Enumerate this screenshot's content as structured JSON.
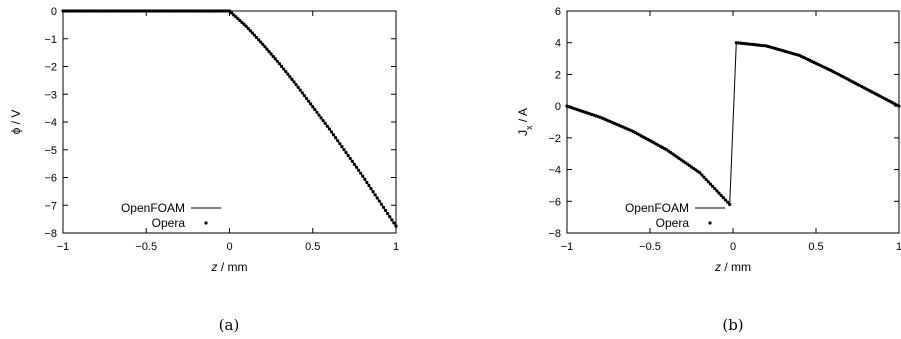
{
  "chart_data": [
    {
      "type": "line",
      "panel_label": "(a)",
      "xlabel_var": "z",
      "xlabel_unit": " / mm",
      "ylabel": "ϕ / V",
      "xlim": [
        -1,
        1
      ],
      "ylim": [
        -8,
        0
      ],
      "xticks": [
        -1,
        -0.5,
        0,
        0.5,
        1
      ],
      "xtick_labels": [
        "−1",
        "−0.5",
        "0",
        "0.5",
        "1"
      ],
      "yticks": [
        0,
        -1,
        -2,
        -3,
        -4,
        -5,
        -6,
        -7,
        -8
      ],
      "ytick_labels": [
        "0",
        "−1",
        "−2",
        "−3",
        "−4",
        "−5",
        "−6",
        "−7",
        "−8"
      ],
      "grid": false,
      "legend_placement": "bottom-left",
      "series": [
        {
          "name": "OpenFOAM",
          "style": "line",
          "x": [
            -1,
            -0.5,
            0,
            0.1,
            0.2,
            0.3,
            0.4,
            0.5,
            0.6,
            0.7,
            0.8,
            0.9,
            1.0
          ],
          "y": [
            0,
            0,
            0,
            -0.55,
            -1.2,
            -1.9,
            -2.65,
            -3.45,
            -4.25,
            -5.1,
            -5.95,
            -6.85,
            -7.75
          ]
        },
        {
          "name": "Opera",
          "style": "points",
          "x": [
            -1,
            -0.5,
            0,
            0.1,
            0.2,
            0.3,
            0.4,
            0.5,
            0.6,
            0.7,
            0.8,
            0.9,
            1.0
          ],
          "y": [
            0,
            0,
            0,
            -0.55,
            -1.2,
            -1.9,
            -2.65,
            -3.45,
            -4.25,
            -5.1,
            -5.95,
            -6.85,
            -7.75
          ]
        }
      ]
    },
    {
      "type": "line",
      "panel_label": "(b)",
      "xlabel_var": "z",
      "xlabel_unit": " / mm",
      "ylabel_main": "J",
      "ylabel_sub": "x",
      "ylabel_unit": " / A",
      "xlim": [
        -1,
        1
      ],
      "ylim": [
        -8,
        6
      ],
      "xticks": [
        -1,
        -0.5,
        0,
        0.5,
        1
      ],
      "xtick_labels": [
        "−1",
        "−0.5",
        "0",
        "0.5",
        "1"
      ],
      "yticks": [
        6,
        4,
        2,
        0,
        -2,
        -4,
        -6,
        -8
      ],
      "ytick_labels": [
        "6",
        "4",
        "2",
        "0",
        "−2",
        "−4",
        "−6",
        "−8"
      ],
      "grid": false,
      "legend_placement": "bottom-left",
      "series": [
        {
          "name": "OpenFOAM",
          "style": "line",
          "x": [
            -1,
            -0.8,
            -0.6,
            -0.4,
            -0.2,
            -0.02,
            0.02,
            0.2,
            0.4,
            0.6,
            0.8,
            1.0
          ],
          "y": [
            0,
            -0.7,
            -1.6,
            -2.75,
            -4.2,
            -6.2,
            4.0,
            3.8,
            3.2,
            2.2,
            1.1,
            0
          ]
        },
        {
          "name": "Opera",
          "style": "points",
          "x": [
            -1,
            -0.8,
            -0.6,
            -0.4,
            -0.2,
            -0.02,
            0.02,
            0.2,
            0.4,
            0.6,
            0.8,
            1.0
          ],
          "y": [
            0,
            -0.7,
            -1.6,
            -2.75,
            -4.2,
            -6.2,
            4.0,
            3.8,
            3.2,
            2.2,
            1.1,
            0
          ]
        }
      ]
    }
  ]
}
